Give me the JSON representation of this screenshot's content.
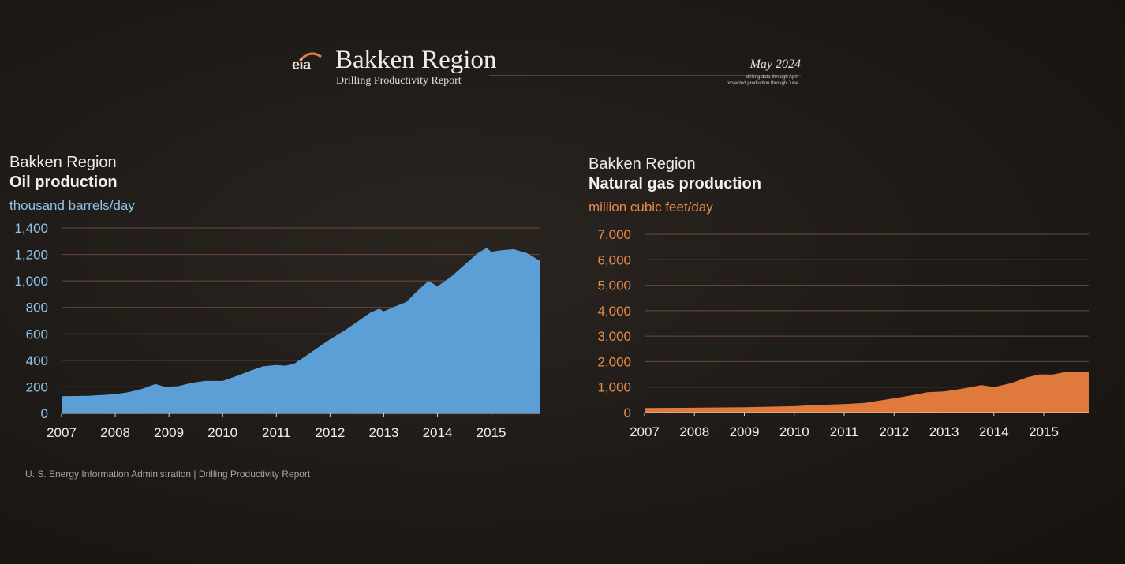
{
  "header": {
    "logo_text": "eia",
    "title": "Bakken Region",
    "subtitle": "Drilling Productivity Report",
    "date": "May 2024",
    "note_line1": "drilling data through April",
    "note_line2": "projected production through June"
  },
  "footer": "U. S. Energy Information Administration  |  Drilling Productivity Report",
  "colors": {
    "oil_fill": "#5b9fd6",
    "oil_text": "#8fc3e8",
    "gas_fill": "#e07a3c",
    "gas_text": "#e8894a",
    "gridline": "#6e4a36"
  },
  "chart_data": [
    {
      "type": "area",
      "region_label": "Bakken Region",
      "title": "Oil production",
      "ylabel": "thousand barrels/day",
      "ylim": [
        0,
        1400
      ],
      "yticks": [
        0,
        200,
        400,
        600,
        800,
        1000,
        1200,
        1400
      ],
      "ytick_labels": [
        "0",
        "200",
        "400",
        "600",
        "800",
        "1,000",
        "1,200",
        "1,400"
      ],
      "xlim": [
        "2007-01",
        "2015-12"
      ],
      "xtick_labels": [
        "2007",
        "2008",
        "2009",
        "2010",
        "2011",
        "2012",
        "2013",
        "2014",
        "2015"
      ],
      "grid": true,
      "points": [
        {
          "x": "2007-01",
          "y": 130
        },
        {
          "x": "2007-07",
          "y": 133
        },
        {
          "x": "2008-01",
          "y": 145
        },
        {
          "x": "2008-04",
          "y": 160
        },
        {
          "x": "2008-07",
          "y": 185
        },
        {
          "x": "2008-10",
          "y": 222
        },
        {
          "x": "2008-12",
          "y": 200
        },
        {
          "x": "2009-03",
          "y": 205
        },
        {
          "x": "2009-06",
          "y": 230
        },
        {
          "x": "2009-09",
          "y": 245
        },
        {
          "x": "2010-01",
          "y": 245
        },
        {
          "x": "2010-04",
          "y": 280
        },
        {
          "x": "2010-07",
          "y": 320
        },
        {
          "x": "2010-10",
          "y": 355
        },
        {
          "x": "2011-01",
          "y": 365
        },
        {
          "x": "2011-03",
          "y": 360
        },
        {
          "x": "2011-05",
          "y": 375
        },
        {
          "x": "2011-07",
          "y": 420
        },
        {
          "x": "2011-10",
          "y": 490
        },
        {
          "x": "2012-01",
          "y": 560
        },
        {
          "x": "2012-04",
          "y": 620
        },
        {
          "x": "2012-07",
          "y": 690
        },
        {
          "x": "2012-10",
          "y": 760
        },
        {
          "x": "2012-12",
          "y": 790
        },
        {
          "x": "2013-01",
          "y": 770
        },
        {
          "x": "2013-03",
          "y": 800
        },
        {
          "x": "2013-06",
          "y": 840
        },
        {
          "x": "2013-09",
          "y": 940
        },
        {
          "x": "2013-11",
          "y": 1000
        },
        {
          "x": "2014-01",
          "y": 960
        },
        {
          "x": "2014-04",
          "y": 1030
        },
        {
          "x": "2014-07",
          "y": 1120
        },
        {
          "x": "2014-10",
          "y": 1210
        },
        {
          "x": "2014-12",
          "y": 1250
        },
        {
          "x": "2015-01",
          "y": 1220
        },
        {
          "x": "2015-03",
          "y": 1230
        },
        {
          "x": "2015-06",
          "y": 1240
        },
        {
          "x": "2015-09",
          "y": 1210
        },
        {
          "x": "2015-12",
          "y": 1150
        }
      ]
    },
    {
      "type": "area",
      "region_label": "Bakken Region",
      "title": "Natural gas production",
      "ylabel": "million cubic feet/day",
      "ylim": [
        0,
        7000
      ],
      "yticks": [
        0,
        1000,
        2000,
        3000,
        4000,
        5000,
        6000,
        7000
      ],
      "ytick_labels": [
        "0",
        "1,000",
        "2,000",
        "3,000",
        "4,000",
        "5,000",
        "6,000",
        "7,000"
      ],
      "xlim": [
        "2007-01",
        "2015-12"
      ],
      "xtick_labels": [
        "2007",
        "2008",
        "2009",
        "2010",
        "2011",
        "2012",
        "2013",
        "2014",
        "2015"
      ],
      "grid": true,
      "points": [
        {
          "x": "2007-01",
          "y": 180
        },
        {
          "x": "2008-01",
          "y": 190
        },
        {
          "x": "2009-01",
          "y": 210
        },
        {
          "x": "2010-01",
          "y": 250
        },
        {
          "x": "2010-07",
          "y": 300
        },
        {
          "x": "2011-01",
          "y": 330
        },
        {
          "x": "2011-06",
          "y": 380
        },
        {
          "x": "2012-01",
          "y": 560
        },
        {
          "x": "2012-06",
          "y": 700
        },
        {
          "x": "2012-09",
          "y": 800
        },
        {
          "x": "2013-01",
          "y": 830
        },
        {
          "x": "2013-06",
          "y": 950
        },
        {
          "x": "2013-10",
          "y": 1080
        },
        {
          "x": "2014-01",
          "y": 1000
        },
        {
          "x": "2014-05",
          "y": 1150
        },
        {
          "x": "2014-09",
          "y": 1380
        },
        {
          "x": "2014-12",
          "y": 1500
        },
        {
          "x": "2015-03",
          "y": 1490
        },
        {
          "x": "2015-06",
          "y": 1590
        },
        {
          "x": "2015-09",
          "y": 1600
        },
        {
          "x": "2015-12",
          "y": 1580
        }
      ]
    }
  ]
}
